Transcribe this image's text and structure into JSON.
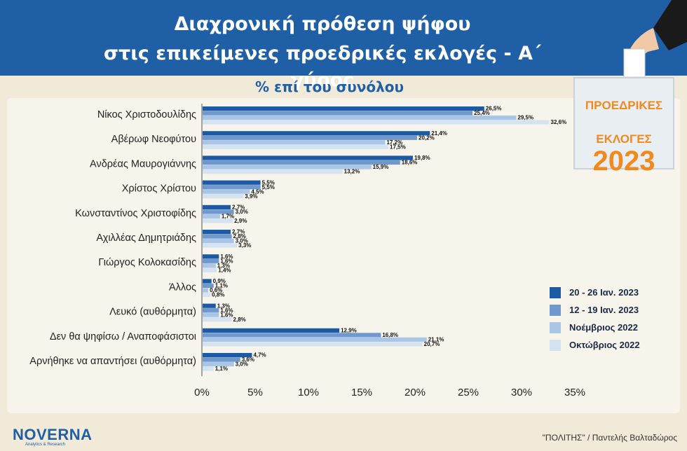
{
  "header": {
    "title_line1": "Διαχρονική πρόθεση ψήφου",
    "title_line2": "στις επικείμενες προεδρικές εκλογές - Α΄ γύρος",
    "subtitle": "% επί του συνόλου"
  },
  "badge": {
    "line1": "ΠΡΟΕΔΡΙΚΕΣ",
    "line2": "ΕΚΛΟΓΕΣ",
    "year": "2023"
  },
  "footer": {
    "logo": "NOVERNA",
    "logo_sub": "Analytics & Research",
    "source": "\"ΠΟΛΙΤΗΣ\" / Παντελής Βαλταδώρος"
  },
  "colors": {
    "series": [
      "#1c5aa4",
      "#6f99cc",
      "#a9c6e6",
      "#d5e3f1"
    ]
  },
  "chart_data": {
    "type": "bar",
    "orientation": "horizontal",
    "categories": [
      "Νίκος Χριστοδουλίδης",
      "Αβέρωφ Νεοφύτου",
      "Ανδρέας Μαυρογιάννης",
      "Χρίστος Χρίστου",
      "Κωνσταντίνος Χριστοφίδης",
      "Αχιλλέας Δημητριάδης",
      "Γιώργος Κολοκασίδης",
      "Άλλος",
      "Λευκό (αυθόρμητα)",
      "Δεν θα ψηφίσω / Αναποφάσιστοι",
      "Αρνήθηκε να απαντήσει (αυθόρμητα)"
    ],
    "series": [
      {
        "name": "20 - 26 Ιαν. 2023",
        "values": [
          26.5,
          21.4,
          19.8,
          5.5,
          2.7,
          2.7,
          1.6,
          0.9,
          1.3,
          12.9,
          4.7
        ]
      },
      {
        "name": "12 - 19 Ιαν. 2023",
        "values": [
          25.4,
          20.2,
          18.6,
          5.5,
          3.0,
          2.8,
          1.6,
          1.1,
          1.6,
          16.8,
          3.6
        ]
      },
      {
        "name": "Νοέμβριος 2022",
        "values": [
          29.5,
          17.2,
          15.9,
          4.5,
          1.7,
          3.0,
          1.3,
          0.6,
          1.6,
          21.1,
          3.0
        ]
      },
      {
        "name": "Οκτώβριος 2022",
        "values": [
          32.6,
          17.5,
          13.2,
          3.9,
          2.9,
          3.3,
          1.4,
          0.8,
          2.8,
          20.7,
          1.1
        ]
      }
    ],
    "value_labels": [
      [
        "26,5%",
        "21,4%",
        "19,8%",
        "5,5%",
        "2,7%",
        "2,7%",
        "1,6%",
        "0,9%",
        "1,3%",
        "12,9%",
        "4,7%"
      ],
      [
        "25,4%",
        "20,2%",
        "18,6%",
        "5,5%",
        "3,0%",
        "2,8%",
        "1,6%",
        "1,1%",
        "1,6%",
        "16,8%",
        "3,6%"
      ],
      [
        "29,5%",
        "17,2%",
        "15,9%",
        "4,5%",
        "1,7%",
        "3,0%",
        "1,3%",
        "0,6%",
        "1,6%",
        "21,1%",
        "3,0%"
      ],
      [
        "32,6%",
        "17,5%",
        "13,2%",
        "3,9%",
        "2,9%",
        "3,3%",
        "1,4%",
        "0,8%",
        "2,8%",
        "20,7%",
        "1,1%"
      ]
    ],
    "xlim": [
      0,
      35
    ],
    "xticks": [
      "0%",
      "5%",
      "10%",
      "15%",
      "20%",
      "25%",
      "30%",
      "35%"
    ],
    "xtick_values": [
      0,
      5,
      10,
      15,
      20,
      25,
      30,
      35
    ],
    "grid": false,
    "legend_position": "bottom-right"
  }
}
